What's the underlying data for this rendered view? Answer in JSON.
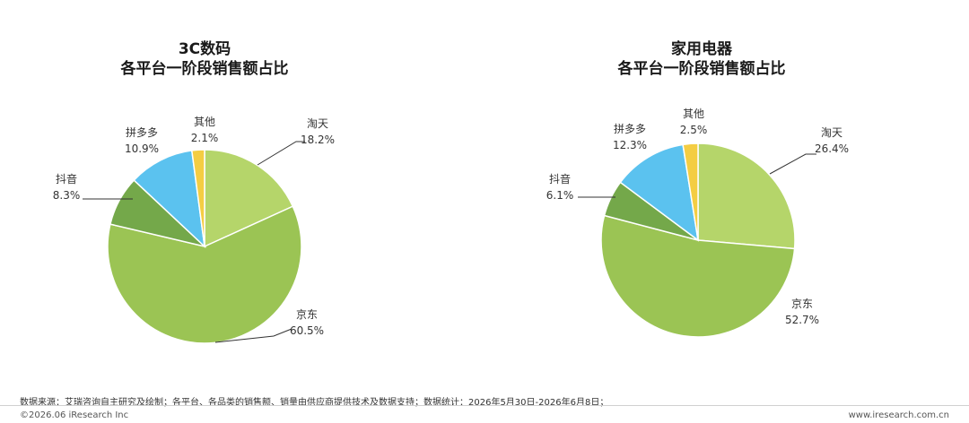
{
  "chart_data": [
    {
      "type": "pie",
      "title": [
        "3C数码",
        "各平台一阶段销售额占比"
      ],
      "slices": [
        {
          "label": "淘天",
          "value": 18.2,
          "display": "18.2%",
          "color": "#b5d56a"
        },
        {
          "label": "京东",
          "value": 60.5,
          "display": "60.5%",
          "color": "#9bc454"
        },
        {
          "label": "抖音",
          "value": 8.3,
          "display": "8.3%",
          "color": "#74a84a"
        },
        {
          "label": "拼多多",
          "value": 10.9,
          "display": "10.9%",
          "color": "#5bc2ef"
        },
        {
          "label": "其他",
          "value": 2.1,
          "display": "2.1%",
          "color": "#f4cd43"
        }
      ]
    },
    {
      "type": "pie",
      "title": [
        "家用电器",
        "各平台一阶段销售额占比"
      ],
      "slices": [
        {
          "label": "淘天",
          "value": 26.4,
          "display": "26.4%",
          "color": "#b5d56a"
        },
        {
          "label": "京东",
          "value": 52.7,
          "display": "52.7%",
          "color": "#9bc454"
        },
        {
          "label": "抖音",
          "value": 6.1,
          "display": "6.1%",
          "color": "#74a84a"
        },
        {
          "label": "拼多多",
          "value": 12.3,
          "display": "12.3%",
          "color": "#5bc2ef"
        },
        {
          "label": "其他",
          "value": 2.5,
          "display": "2.5%",
          "color": "#f4cd43"
        }
      ]
    }
  ],
  "footer": {
    "source": "数据来源：艾瑞咨询自主研究及绘制；各平台、各品类的销售额、销量由供应商提供技术及数据支持；数据统计：2026年5月30日-2026年6月8日；",
    "copyright": "©2026.06 iResearch Inc",
    "url": "www.iresearch.com.cn"
  }
}
